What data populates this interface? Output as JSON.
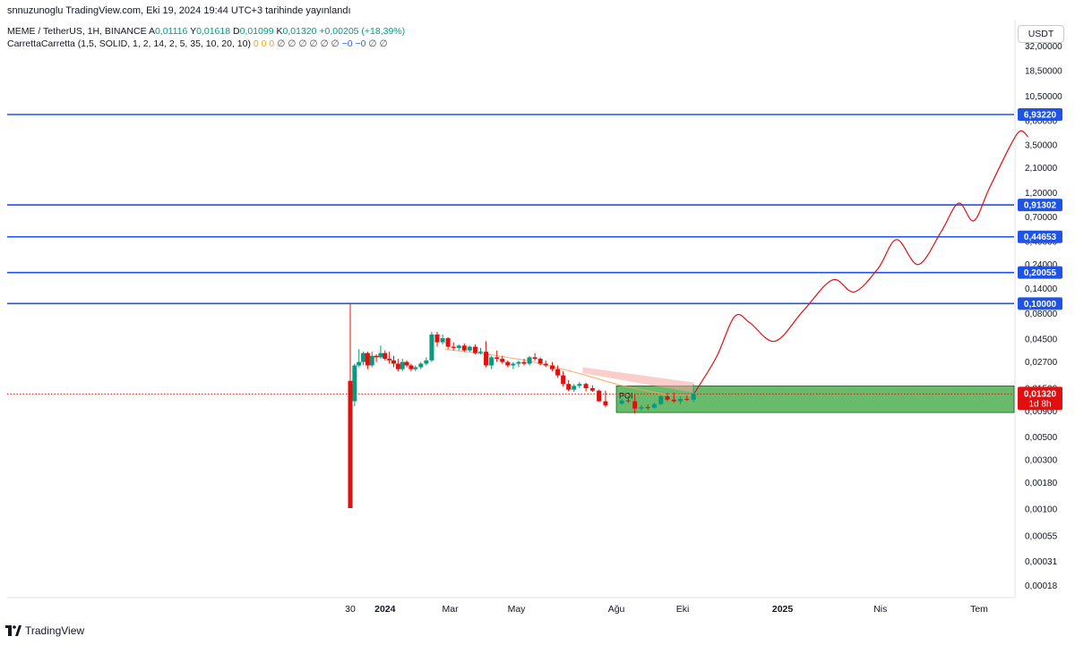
{
  "header": {
    "caption": "snnuzunoglu TradingView.com, Eki 19, 2024 19:44 UTC+3 tarihinde yayınlandı",
    "symbol": "MEME / TetherUS, 1H, BINANCE",
    "ohlc": {
      "open_label": "A",
      "open": "0,01116",
      "high_label": "Y",
      "high": "0,01618",
      "low_label": "D",
      "low": "0,01099",
      "close_label": "K",
      "close": "0,01320",
      "change": "+0,00205 (+18,39%)"
    },
    "indicator_name": "CarrettaCarretta (1,5, SOLID, 1, 2, 14, 2, 5, 35, 10, 20, 10)",
    "indicator_values_orange": "0 0 0",
    "indicator_values_gray": "∅ ∅ ∅ ∅ ∅ ∅",
    "indicator_values_blue": "−0 −0",
    "indicator_values_tail": "∅ ∅"
  },
  "currency": "USDT",
  "footer": {
    "brand": "TradingView"
  },
  "colors": {
    "up": "#089981",
    "down": "#e01010",
    "level": "#1e53e5",
    "zone_fill": "#4caf50",
    "projection": "#e01010",
    "price_badge": "#e01010",
    "trend_band": "#f4a6a0"
  },
  "chart_data": {
    "type": "candlestick",
    "title": "MEME / TetherUS",
    "y_scale": "log",
    "y_ticks": [
      "32,00000",
      "18,50000",
      "10,50000",
      "6,00000",
      "3,50000",
      "2,10000",
      "1,20000",
      "0,70000",
      "0,40000",
      "0,24000",
      "0,14000",
      "0,08000",
      "0,04500",
      "0,02700",
      "0,01500",
      "0,00900",
      "0,00500",
      "0,00300",
      "0,00180",
      "0,00100",
      "0,00055",
      "0,00031",
      "0,00018"
    ],
    "y_tick_values": [
      32,
      18.5,
      10.5,
      6.0,
      3.5,
      2.1,
      1.2,
      0.7,
      0.4,
      0.24,
      0.14,
      0.08,
      0.045,
      0.027,
      0.015,
      0.009,
      0.005,
      0.003,
      0.0018,
      0.001,
      0.00055,
      0.00031,
      0.00018
    ],
    "x_ticks": [
      {
        "label": "30",
        "date": "2023-11-30",
        "bold": false
      },
      {
        "label": "2024",
        "date": "2024-01-01",
        "bold": true
      },
      {
        "label": "Mar",
        "date": "2024-03-01",
        "bold": false
      },
      {
        "label": "May",
        "date": "2024-05-01",
        "bold": false
      },
      {
        "label": "Ağu",
        "date": "2024-08-01",
        "bold": false
      },
      {
        "label": "Eki",
        "date": "2024-10-01",
        "bold": false
      },
      {
        "label": "2025",
        "date": "2025-01-01",
        "bold": true
      },
      {
        "label": "Nis",
        "date": "2025-04-01",
        "bold": false
      },
      {
        "label": "Tem",
        "date": "2025-07-01",
        "bold": false
      }
    ],
    "horizontal_levels": [
      {
        "value": 6.9322,
        "label": "6,93220"
      },
      {
        "value": 0.91302,
        "label": "0,91302"
      },
      {
        "value": 0.44653,
        "label": "0,44653"
      },
      {
        "value": 0.20055,
        "label": "0,20055"
      },
      {
        "value": 0.1,
        "label": "0,10000"
      }
    ],
    "last_price": {
      "value": 0.0132,
      "label": "0,01320",
      "countdown": "1d 8h"
    },
    "zone": {
      "label": "POI",
      "from": "2024-08-01",
      "to": "2025-08-10",
      "top": 0.0158,
      "bottom": 0.0087
    },
    "candles": [
      {
        "date": "2023-11-30",
        "o": 0.0177,
        "h": 0.1,
        "l": 0.00102,
        "c": 0.00102
      },
      {
        "date": "2023-12-04",
        "o": 0.0112,
        "h": 0.026,
        "l": 0.01,
        "c": 0.025
      },
      {
        "date": "2023-12-08",
        "o": 0.025,
        "h": 0.036,
        "l": 0.024,
        "c": 0.027
      },
      {
        "date": "2023-12-12",
        "o": 0.027,
        "h": 0.034,
        "l": 0.025,
        "c": 0.033
      },
      {
        "date": "2023-12-16",
        "o": 0.033,
        "h": 0.034,
        "l": 0.023,
        "c": 0.025
      },
      {
        "date": "2023-12-20",
        "o": 0.025,
        "h": 0.034,
        "l": 0.024,
        "c": 0.031
      },
      {
        "date": "2023-12-24",
        "o": 0.031,
        "h": 0.032,
        "l": 0.027,
        "c": 0.03
      },
      {
        "date": "2023-12-28",
        "o": 0.03,
        "h": 0.039,
        "l": 0.029,
        "c": 0.033
      },
      {
        "date": "2024-01-01",
        "o": 0.033,
        "h": 0.035,
        "l": 0.028,
        "c": 0.029
      },
      {
        "date": "2024-01-05",
        "o": 0.029,
        "h": 0.034,
        "l": 0.026,
        "c": 0.028
      },
      {
        "date": "2024-01-09",
        "o": 0.028,
        "h": 0.031,
        "l": 0.024,
        "c": 0.026
      },
      {
        "date": "2024-01-13",
        "o": 0.026,
        "h": 0.029,
        "l": 0.022,
        "c": 0.023
      },
      {
        "date": "2024-01-17",
        "o": 0.023,
        "h": 0.029,
        "l": 0.022,
        "c": 0.027
      },
      {
        "date": "2024-01-21",
        "o": 0.027,
        "h": 0.028,
        "l": 0.024,
        "c": 0.025
      },
      {
        "date": "2024-01-25",
        "o": 0.025,
        "h": 0.026,
        "l": 0.022,
        "c": 0.023
      },
      {
        "date": "2024-01-29",
        "o": 0.023,
        "h": 0.025,
        "l": 0.022,
        "c": 0.024
      },
      {
        "date": "2024-02-03",
        "o": 0.024,
        "h": 0.027,
        "l": 0.023,
        "c": 0.026
      },
      {
        "date": "2024-02-08",
        "o": 0.026,
        "h": 0.03,
        "l": 0.025,
        "c": 0.028
      },
      {
        "date": "2024-02-13",
        "o": 0.028,
        "h": 0.053,
        "l": 0.027,
        "c": 0.05
      },
      {
        "date": "2024-02-18",
        "o": 0.05,
        "h": 0.053,
        "l": 0.038,
        "c": 0.042
      },
      {
        "date": "2024-02-23",
        "o": 0.042,
        "h": 0.05,
        "l": 0.04,
        "c": 0.046
      },
      {
        "date": "2024-02-28",
        "o": 0.046,
        "h": 0.047,
        "l": 0.036,
        "c": 0.038
      },
      {
        "date": "2024-03-04",
        "o": 0.038,
        "h": 0.042,
        "l": 0.035,
        "c": 0.037
      },
      {
        "date": "2024-03-09",
        "o": 0.037,
        "h": 0.04,
        "l": 0.035,
        "c": 0.039
      },
      {
        "date": "2024-03-14",
        "o": 0.039,
        "h": 0.041,
        "l": 0.034,
        "c": 0.035
      },
      {
        "date": "2024-03-19",
        "o": 0.035,
        "h": 0.039,
        "l": 0.034,
        "c": 0.038
      },
      {
        "date": "2024-03-24",
        "o": 0.038,
        "h": 0.04,
        "l": 0.032,
        "c": 0.033
      },
      {
        "date": "2024-03-29",
        "o": 0.033,
        "h": 0.037,
        "l": 0.032,
        "c": 0.034
      },
      {
        "date": "2024-04-03",
        "o": 0.034,
        "h": 0.043,
        "l": 0.024,
        "c": 0.025
      },
      {
        "date": "2024-04-08",
        "o": 0.025,
        "h": 0.031,
        "l": 0.023,
        "c": 0.03
      },
      {
        "date": "2024-04-13",
        "o": 0.03,
        "h": 0.035,
        "l": 0.027,
        "c": 0.029
      },
      {
        "date": "2024-04-18",
        "o": 0.029,
        "h": 0.031,
        "l": 0.026,
        "c": 0.027
      },
      {
        "date": "2024-04-23",
        "o": 0.027,
        "h": 0.028,
        "l": 0.024,
        "c": 0.025
      },
      {
        "date": "2024-04-28",
        "o": 0.025,
        "h": 0.027,
        "l": 0.023,
        "c": 0.026
      },
      {
        "date": "2024-05-03",
        "o": 0.026,
        "h": 0.028,
        "l": 0.024,
        "c": 0.027
      },
      {
        "date": "2024-05-08",
        "o": 0.027,
        "h": 0.029,
        "l": 0.025,
        "c": 0.026
      },
      {
        "date": "2024-05-13",
        "o": 0.026,
        "h": 0.031,
        "l": 0.025,
        "c": 0.03
      },
      {
        "date": "2024-05-18",
        "o": 0.03,
        "h": 0.033,
        "l": 0.028,
        "c": 0.029
      },
      {
        "date": "2024-05-23",
        "o": 0.029,
        "h": 0.03,
        "l": 0.025,
        "c": 0.026
      },
      {
        "date": "2024-05-28",
        "o": 0.026,
        "h": 0.028,
        "l": 0.024,
        "c": 0.025
      },
      {
        "date": "2024-06-03",
        "o": 0.025,
        "h": 0.027,
        "l": 0.022,
        "c": 0.023
      },
      {
        "date": "2024-06-08",
        "o": 0.023,
        "h": 0.025,
        "l": 0.019,
        "c": 0.02
      },
      {
        "date": "2024-06-13",
        "o": 0.02,
        "h": 0.022,
        "l": 0.0155,
        "c": 0.0165
      },
      {
        "date": "2024-06-18",
        "o": 0.0165,
        "h": 0.018,
        "l": 0.014,
        "c": 0.0145
      },
      {
        "date": "2024-06-23",
        "o": 0.0145,
        "h": 0.0165,
        "l": 0.0138,
        "c": 0.0158
      },
      {
        "date": "2024-06-28",
        "o": 0.0158,
        "h": 0.0172,
        "l": 0.015,
        "c": 0.0165
      },
      {
        "date": "2024-07-04",
        "o": 0.0165,
        "h": 0.017,
        "l": 0.014,
        "c": 0.015
      },
      {
        "date": "2024-07-10",
        "o": 0.015,
        "h": 0.016,
        "l": 0.0138,
        "c": 0.0142
      },
      {
        "date": "2024-07-16",
        "o": 0.0142,
        "h": 0.0145,
        "l": 0.011,
        "c": 0.0112
      },
      {
        "date": "2024-07-22",
        "o": 0.0112,
        "h": 0.0142,
        "l": 0.0098,
        "c": 0.0102
      },
      {
        "date": "2024-08-06",
        "o": 0.0106,
        "h": 0.0118,
        "l": 0.0104,
        "c": 0.0114
      },
      {
        "date": "2024-08-12",
        "o": 0.0114,
        "h": 0.0125,
        "l": 0.0108,
        "c": 0.0112
      },
      {
        "date": "2024-08-18",
        "o": 0.0112,
        "h": 0.013,
        "l": 0.0085,
        "c": 0.0095
      },
      {
        "date": "2024-08-24",
        "o": 0.0095,
        "h": 0.0103,
        "l": 0.009,
        "c": 0.0098
      },
      {
        "date": "2024-08-30",
        "o": 0.0098,
        "h": 0.0104,
        "l": 0.0092,
        "c": 0.0097
      },
      {
        "date": "2024-09-05",
        "o": 0.0097,
        "h": 0.0108,
        "l": 0.0095,
        "c": 0.0105
      },
      {
        "date": "2024-09-11",
        "o": 0.0105,
        "h": 0.0128,
        "l": 0.0103,
        "c": 0.0125
      },
      {
        "date": "2024-09-17",
        "o": 0.0125,
        "h": 0.0135,
        "l": 0.0112,
        "c": 0.0116
      },
      {
        "date": "2024-09-23",
        "o": 0.0116,
        "h": 0.0136,
        "l": 0.0108,
        "c": 0.0112
      },
      {
        "date": "2024-09-29",
        "o": 0.0112,
        "h": 0.0125,
        "l": 0.0105,
        "c": 0.0118
      },
      {
        "date": "2024-10-05",
        "o": 0.0118,
        "h": 0.0128,
        "l": 0.0113,
        "c": 0.0116
      },
      {
        "date": "2024-10-11",
        "o": 0.0116,
        "h": 0.0162,
        "l": 0.011,
        "c": 0.0132
      }
    ],
    "trend_band": {
      "start": "2024-07-01",
      "end": "2024-10-12",
      "upper": [
        0.024,
        0.017
      ],
      "lower": [
        0.021,
        0.0135
      ]
    },
    "ma_line": [
      {
        "date": "2024-02-25",
        "value": 0.036
      },
      {
        "date": "2024-04-05",
        "value": 0.032
      },
      {
        "date": "2024-05-10",
        "value": 0.028
      },
      {
        "date": "2024-06-20",
        "value": 0.022
      },
      {
        "date": "2024-08-05",
        "value": 0.016
      },
      {
        "date": "2024-09-15",
        "value": 0.013
      },
      {
        "date": "2024-10-10",
        "value": 0.0128
      }
    ],
    "projection_path": [
      {
        "date": "2024-10-12",
        "value": 0.0135
      },
      {
        "date": "2024-11-01",
        "value": 0.03
      },
      {
        "date": "2024-11-18",
        "value": 0.075
      },
      {
        "date": "2024-12-02",
        "value": 0.065
      },
      {
        "date": "2024-12-25",
        "value": 0.043
      },
      {
        "date": "2025-01-20",
        "value": 0.085
      },
      {
        "date": "2025-02-16",
        "value": 0.17
      },
      {
        "date": "2025-03-08",
        "value": 0.13
      },
      {
        "date": "2025-03-30",
        "value": 0.22
      },
      {
        "date": "2025-04-16",
        "value": 0.42
      },
      {
        "date": "2025-05-06",
        "value": 0.24
      },
      {
        "date": "2025-05-27",
        "value": 0.5
      },
      {
        "date": "2025-06-12",
        "value": 0.95
      },
      {
        "date": "2025-06-26",
        "value": 0.64
      },
      {
        "date": "2025-07-10",
        "value": 1.3
      },
      {
        "date": "2025-07-30",
        "value": 3.5
      },
      {
        "date": "2025-08-08",
        "value": 4.8
      },
      {
        "date": "2025-08-15",
        "value": 4.2
      }
    ]
  }
}
